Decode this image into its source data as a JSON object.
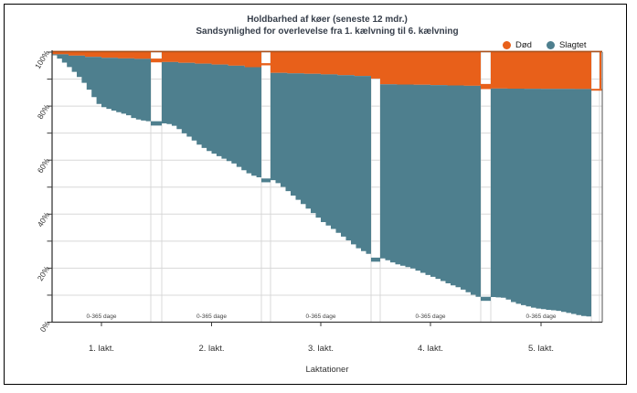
{
  "title": {
    "line1": "Holdbarhed af køer (seneste 12 mdr.)",
    "line2": "Sandsynlighed for overlevelse fra 1. kælvning til 6. kælvning"
  },
  "legend": [
    {
      "label": "Død",
      "color": "#E8601A"
    },
    {
      "label": "Slagtet",
      "color": "#4E7F8E"
    }
  ],
  "axes": {
    "y_tick_labels": [
      "0%",
      "20%",
      "40%",
      "60%",
      "80%",
      "100%"
    ],
    "y_tick_values": [
      0,
      20,
      40,
      60,
      80,
      100
    ],
    "y_minor_step": 10,
    "x_labels": [
      "1. lakt.",
      "2. lakt.",
      "3. lakt.",
      "4. lakt.",
      "5. lakt."
    ],
    "x_axis_title": "Laktationer",
    "interval_label": "0-365 dage"
  },
  "colors": {
    "dead": "#E8601A",
    "dead_edge": "#A9511C",
    "slaughtered": "#4E7F8E",
    "grid": "#D8D8D8",
    "axis": "#3A3A3A",
    "right_border": "#6E6E6E",
    "text": "#333333",
    "title_text": "#363E4A"
  },
  "chart_data": {
    "type": "area",
    "title": "Holdbarhed af køer (seneste 12 mdr.)",
    "subtitle": "Sandsynlighed for overlevelse fra 1. kælvning til 6. kælvning",
    "xlabel": "Laktationer",
    "ylabel": "",
    "y_unit": "%",
    "y_range": [
      0,
      100
    ],
    "grid": true,
    "legend_position": "top-right",
    "series_names": [
      "Død",
      "Slagtet"
    ],
    "categories": [
      "1. lakt.",
      "2. lakt.",
      "3. lakt.",
      "4. lakt.",
      "5. lakt."
    ],
    "survival_pct_at_lactation_start": [
      100,
      73.8,
      52.8,
      23.6,
      9.3
    ],
    "survival_pct_at_lactation_end": [
      74.2,
      53.0,
      24.2,
      8.6,
      1.9
    ],
    "cumulative_dead_pct_at_lactation_end": [
      2.7,
      6.2,
      9.6,
      12.7,
      13.7
    ],
    "lactations": [
      {
        "label": "1. lakt.",
        "interval": "0-365 dage",
        "survival_steps": [
          [
            0,
            98.8
          ],
          [
            0.05,
            97.6
          ],
          [
            0.11,
            95.8
          ],
          [
            0.17,
            93.8
          ],
          [
            0.24,
            91.2
          ],
          [
            0.31,
            88.2
          ],
          [
            0.38,
            84.5
          ],
          [
            0.44,
            81.0
          ],
          [
            0.5,
            79.6
          ],
          [
            0.58,
            78.6
          ],
          [
            0.66,
            77.6
          ],
          [
            0.74,
            76.8
          ],
          [
            0.8,
            75.6
          ],
          [
            0.87,
            74.8
          ],
          [
            1,
            74.2
          ]
        ],
        "dead_boundary": [
          [
            0,
            99.2
          ],
          [
            0.25,
            98.4
          ],
          [
            0.55,
            97.8
          ],
          [
            1,
            97.3
          ]
        ]
      },
      {
        "label": "2. lakt.",
        "interval": "0-365 dage",
        "survival_steps": [
          [
            0,
            73.6
          ],
          [
            0.08,
            73.2
          ],
          [
            0.15,
            71.5
          ],
          [
            0.21,
            69.6
          ],
          [
            0.28,
            68.0
          ],
          [
            0.33,
            66.2
          ],
          [
            0.4,
            64.5
          ],
          [
            0.45,
            63.4
          ],
          [
            0.51,
            62.2
          ],
          [
            0.57,
            61.1
          ],
          [
            0.63,
            60.0
          ],
          [
            0.69,
            59.0
          ],
          [
            0.75,
            57.5
          ],
          [
            0.81,
            56.0
          ],
          [
            0.88,
            54.5
          ],
          [
            1,
            53.0
          ]
        ],
        "dead_boundary": [
          [
            0,
            96.3
          ],
          [
            0.3,
            95.8
          ],
          [
            0.55,
            95.3
          ],
          [
            0.78,
            94.6
          ],
          [
            1,
            93.8
          ]
        ]
      },
      {
        "label": "3. lakt.",
        "interval": "0-365 dage",
        "survival_steps": [
          [
            0,
            52.6
          ],
          [
            0.07,
            51.0
          ],
          [
            0.13,
            49.2
          ],
          [
            0.19,
            47.2
          ],
          [
            0.25,
            45.3
          ],
          [
            0.31,
            43.4
          ],
          [
            0.37,
            41.4
          ],
          [
            0.43,
            39.4
          ],
          [
            0.49,
            37.3
          ],
          [
            0.55,
            35.8
          ],
          [
            0.62,
            34.0
          ],
          [
            0.68,
            32.2
          ],
          [
            0.74,
            30.6
          ],
          [
            0.8,
            28.8
          ],
          [
            0.86,
            27.1
          ],
          [
            0.93,
            25.7
          ],
          [
            1,
            24.2
          ]
        ],
        "dead_boundary": [
          [
            0,
            92.3
          ],
          [
            0.4,
            91.9
          ],
          [
            0.7,
            91.4
          ],
          [
            0.93,
            91.0
          ],
          [
            1,
            90.4
          ]
        ]
      },
      {
        "label": "4. lakt.",
        "interval": "0-365 dage",
        "survival_steps": [
          [
            0,
            23.6
          ],
          [
            0.08,
            22.5
          ],
          [
            0.13,
            21.6
          ],
          [
            0.21,
            20.8
          ],
          [
            0.29,
            20.0
          ],
          [
            0.37,
            18.8
          ],
          [
            0.44,
            17.6
          ],
          [
            0.52,
            16.5
          ],
          [
            0.59,
            15.4
          ],
          [
            0.66,
            14.2
          ],
          [
            0.74,
            13.1
          ],
          [
            0.82,
            11.7
          ],
          [
            0.89,
            10.3
          ],
          [
            1,
            8.6
          ]
        ],
        "dead_boundary": [
          [
            0,
            88.1
          ],
          [
            0.5,
            87.8
          ],
          [
            0.85,
            87.5
          ],
          [
            1,
            87.3
          ]
        ]
      },
      {
        "label": "5. lakt.",
        "interval": "0-365 dage",
        "survival_steps": [
          [
            0,
            9.3
          ],
          [
            0.12,
            9.0
          ],
          [
            0.18,
            7.7
          ],
          [
            0.25,
            6.8
          ],
          [
            0.32,
            6.1
          ],
          [
            0.42,
            5.2
          ],
          [
            0.52,
            4.7
          ],
          [
            0.65,
            4.2
          ],
          [
            0.78,
            3.2
          ],
          [
            0.88,
            2.4
          ],
          [
            1,
            1.9
          ]
        ],
        "dead_boundary": [
          [
            0,
            86.5
          ],
          [
            1,
            86.3
          ]
        ]
      }
    ],
    "gap_bridges": [
      {
        "slaughtered_span": [
          74.4,
          72.8
        ],
        "dead_span": [
          97.6,
          96.2
        ]
      },
      {
        "slaughtered_span": [
          53.2,
          51.8
        ],
        "dead_span": [
          95.9,
          95.1
        ]
      },
      {
        "slaughtered_span": [
          23.9,
          22.4
        ],
        "dead_span": [
          100,
          90.2
        ]
      },
      {
        "slaughtered_span": [
          9.4,
          7.9
        ],
        "dead_span": [
          88.2,
          86.3
        ]
      }
    ],
    "right_edge": {
      "dead_line_level": 86.4
    }
  }
}
